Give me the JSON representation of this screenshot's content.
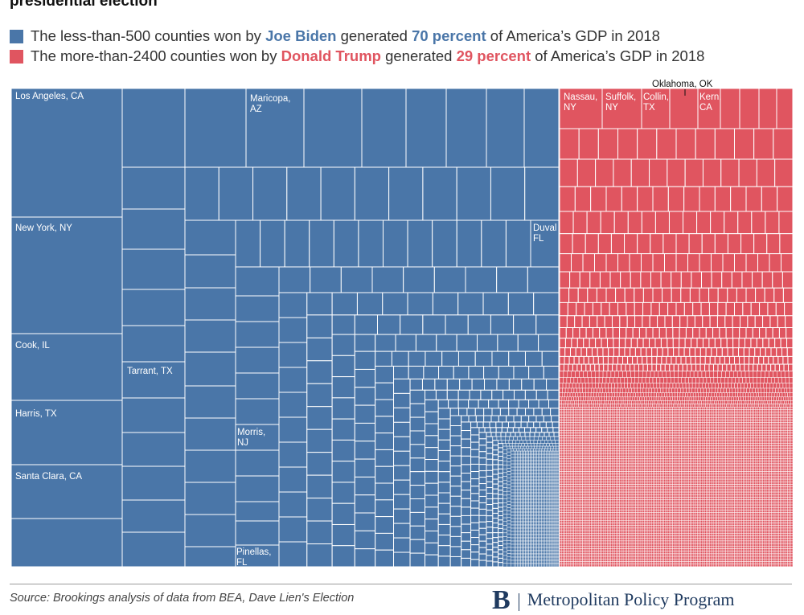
{
  "chart_data": {
    "type": "treemap",
    "title": "presidential election",
    "units": "percent of America's GDP in 2018",
    "legend": {
      "placement": "top-left",
      "entries": [
        {
          "key": "biden",
          "color": "#4a76a8",
          "segments": [
            {
              "text": "The less-than-500 counties won by ",
              "hl": false
            },
            {
              "text": "Joe Biden",
              "hl": true
            },
            {
              "text": " generated ",
              "hl": false
            },
            {
              "text": "70 percent",
              "hl": true
            },
            {
              "text": " of America’s GDP in 2018",
              "hl": false
            }
          ]
        },
        {
          "key": "trump",
          "color": "#e05560",
          "segments": [
            {
              "text": "The more-than-2400 counties won by ",
              "hl": false
            },
            {
              "text": "Donald Trump",
              "hl": true
            },
            {
              "text": " generated ",
              "hl": false
            },
            {
              "text": "29 percent",
              "hl": true
            },
            {
              "text": " of America’s GDP in 2018",
              "hl": false
            }
          ]
        }
      ]
    },
    "series": [
      {
        "key": "biden",
        "name": "Joe Biden",
        "share_percent": 70,
        "county_count_label": "less-than-500",
        "color": "#4a76a8",
        "labeled_counties": [
          "Los Angeles, CA",
          "New York, NY",
          "Cook, IL",
          "Harris, TX",
          "Santa Clara, CA",
          "Tarrant, TX",
          "Maricopa, AZ",
          "Duval FL",
          "Morris, NJ",
          "Pinellas, FL"
        ]
      },
      {
        "key": "trump",
        "name": "Donald Trump",
        "share_percent": 29,
        "county_count_label": "more-than-2400",
        "color": "#e05560",
        "labeled_counties": [
          "Nassau, NY",
          "Suffolk, NY",
          "Collin, TX",
          "Oklahoma, OK",
          "Kern, CA"
        ]
      }
    ]
  },
  "footer": {
    "source": "Source: Brookings analysis of data from BEA, Dave Lien's Election",
    "brand_logo": "B",
    "brand_name": "Metropolitan Policy Program"
  }
}
